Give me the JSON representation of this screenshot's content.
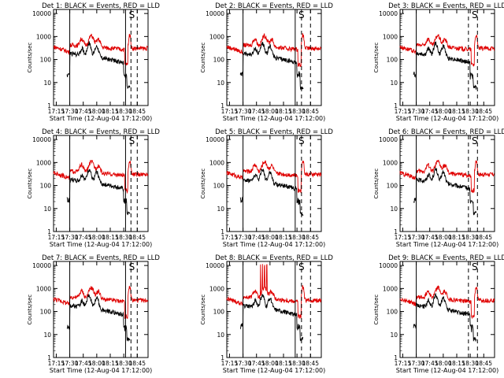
{
  "colors": {
    "events": "#000000",
    "lld": "#e00000",
    "axes": "#000000",
    "background": "#ffffff"
  },
  "chart_data": [
    {
      "type": "line",
      "title": "Det 1: BLACK = Events, RED = LLD",
      "xlabel": "Start Time (12-Aug-04 17:12:00)",
      "ylabel": "Counts/sec",
      "x_ticks": [
        "17:15",
        "17:30",
        "17:45",
        "18:00",
        "18:15",
        "18:30",
        "18:45"
      ],
      "y_ticks": [
        "1",
        "10",
        "100",
        "1000",
        "10000"
      ],
      "xlim_minutes": [
        17.2,
        18.95
      ],
      "ylim": [
        1,
        15000
      ],
      "y_scale": "log",
      "annotation": "S",
      "vertical_lines": {
        "solid": [
          "17:30",
          "18:32"
        ],
        "dashed": [
          "18:38",
          "18:45"
        ]
      },
      "series": [
        {
          "color": "red",
          "values": "~150-400 counts/sec baseline with peaks near 17:42, 17:52, 18:05; spike ~1200 at 18:36"
        },
        {
          "color": "black",
          "values": "~20 at 17:27, ~60-500 counts/sec with peaks near 17:53, 18:05; drop at 18:30"
        }
      ]
    },
    {
      "type": "line",
      "title": "Det 2: BLACK = Events, RED = LLD",
      "xlabel": "Start Time (12-Aug-04 17:12:00)",
      "ylabel": "Counts/sec",
      "x_ticks": [
        "17:15",
        "17:30",
        "17:45",
        "18:00",
        "18:15",
        "18:30",
        "18:45"
      ],
      "y_ticks": [
        "1",
        "10",
        "100",
        "1000",
        "10000"
      ],
      "xlim_minutes": [
        17.2,
        18.95
      ],
      "ylim": [
        1,
        15000
      ],
      "y_scale": "log",
      "annotation": "S",
      "vertical_lines": {
        "solid": [
          "17:30",
          "18:28"
        ],
        "dashed": [
          "18:35",
          "18:45"
        ]
      },
      "series": [
        {
          "color": "red",
          "values": "~300-900 counts/sec"
        },
        {
          "color": "black",
          "values": "~100-500 counts/sec"
        }
      ]
    },
    {
      "type": "line",
      "title": "Det 3: BLACK = Events, RED = LLD",
      "xlabel": "Start Time (12-Aug-04 17:12:00)",
      "ylabel": "Counts/sec",
      "x_ticks": [
        "17:15",
        "17:30",
        "17:45",
        "18:00",
        "18:15",
        "18:30",
        "18:45"
      ],
      "y_ticks": [
        "1",
        "10",
        "100",
        "1000",
        "10000"
      ],
      "xlim_minutes": [
        17.2,
        18.95
      ],
      "ylim": [
        1,
        15000
      ],
      "y_scale": "log",
      "annotation": "S",
      "vertical_lines": {
        "solid": [
          "17:30"
        ],
        "dashed": [
          "18:28",
          "18:38"
        ]
      },
      "series": [
        {
          "color": "red",
          "values": "~300-1200 counts/sec"
        },
        {
          "color": "black",
          "values": "~15-500 counts/sec"
        }
      ]
    },
    {
      "type": "line",
      "title": "Det 4: BLACK = Events, RED = LLD",
      "xlabel": "Start Time (12-Aug-04 17:12:00)",
      "ylabel": "Counts/sec",
      "x_ticks": [
        "17:15",
        "17:30",
        "17:45",
        "18:00",
        "18:15",
        "18:30",
        "18:45"
      ],
      "y_ticks": [
        "1",
        "10",
        "100",
        "1000",
        "10000"
      ],
      "xlim_minutes": [
        17.2,
        18.95
      ],
      "ylim": [
        1,
        15000
      ],
      "y_scale": "log",
      "annotation": "S",
      "vertical_lines": {
        "solid": [
          "17:30",
          "18:32"
        ],
        "dashed": [
          "18:38",
          "18:45"
        ]
      },
      "series": [
        {
          "color": "red",
          "values": "~300-2000 counts/sec"
        },
        {
          "color": "black",
          "values": "~20-700 counts/sec"
        }
      ]
    },
    {
      "type": "line",
      "title": "Det 5: BLACK = Events, RED = LLD",
      "xlabel": "Start Time (12-Aug-04 17:12:00)",
      "ylabel": "Counts/sec",
      "x_ticks": [
        "17:15",
        "17:30",
        "17:45",
        "18:00",
        "18:15",
        "18:30",
        "18:45"
      ],
      "y_ticks": [
        "1",
        "10",
        "100",
        "1000",
        "10000"
      ],
      "xlim_minutes": [
        17.2,
        18.95
      ],
      "ylim": [
        1,
        15000
      ],
      "y_scale": "log",
      "annotation": "S",
      "vertical_lines": {
        "solid": [
          "17:30",
          "18:28"
        ],
        "dashed": [
          "18:35",
          "18:45"
        ]
      },
      "series": [
        {
          "color": "red",
          "values": "~400-1500 counts/sec"
        },
        {
          "color": "black",
          "values": "~20-500 counts/sec"
        }
      ]
    },
    {
      "type": "line",
      "title": "Det 6: BLACK = Events, RED = LLD",
      "xlabel": "Start Time (12-Aug-04 17:12:00)",
      "ylabel": "Counts/sec",
      "x_ticks": [
        "17:15",
        "17:30",
        "17:45",
        "18:00",
        "18:15",
        "18:30",
        "18:45"
      ],
      "y_ticks": [
        "1",
        "10",
        "100",
        "1000",
        "10000"
      ],
      "xlim_minutes": [
        17.2,
        18.95
      ],
      "ylim": [
        1,
        15000
      ],
      "y_scale": "log",
      "annotation": "S",
      "vertical_lines": {
        "solid": [
          "17:30"
        ],
        "dashed": [
          "18:28",
          "18:38"
        ]
      },
      "series": [
        {
          "color": "red",
          "values": "~300-1500 counts/sec"
        },
        {
          "color": "black",
          "values": "~15-500 counts/sec"
        }
      ]
    },
    {
      "type": "line",
      "title": "Det 7: BLACK = Events, RED = LLD",
      "xlabel": "Start Time (12-Aug-04 17:12:00)",
      "ylabel": "Counts/sec",
      "x_ticks": [
        "17:15",
        "17:30",
        "17:45",
        "18:00",
        "18:15",
        "18:30",
        "18:45"
      ],
      "y_ticks": [
        "1",
        "10",
        "100",
        "1000",
        "10000"
      ],
      "xlim_minutes": [
        17.2,
        18.95
      ],
      "ylim": [
        1,
        15000
      ],
      "y_scale": "log",
      "annotation": "S",
      "vertical_lines": {
        "solid": [
          "17:30",
          "18:32"
        ],
        "dashed": [
          "18:38",
          "18:45"
        ]
      },
      "series": [
        {
          "color": "red",
          "values": "~250-1000 counts/sec"
        },
        {
          "color": "black",
          "values": "~20-400 counts/sec"
        }
      ]
    },
    {
      "type": "line",
      "title": "Det 8: BLACK = Events, RED = LLD",
      "xlabel": "Start Time (12-Aug-04 17:12:00)",
      "ylabel": "Counts/sec",
      "x_ticks": [
        "17:15",
        "17:30",
        "17:45",
        "18:00",
        "18:15",
        "18:30",
        "18:45"
      ],
      "y_ticks": [
        "1",
        "10",
        "100",
        "1000",
        "10000"
      ],
      "xlim_minutes": [
        17.2,
        18.95
      ],
      "ylim": [
        1,
        15000
      ],
      "y_scale": "log",
      "annotation": "S",
      "vertical_lines": {
        "solid": [
          "17:30",
          "18:28"
        ],
        "dashed": [
          "18:35",
          "18:45"
        ]
      },
      "series": [
        {
          "color": "red",
          "values": "~500-1500 counts/sec, spikes to ~10000 near 17:50-18:00"
        },
        {
          "color": "black",
          "values": "~30-700 counts/sec"
        }
      ]
    },
    {
      "type": "line",
      "title": "Det 9: BLACK = Events, RED = LLD",
      "xlabel": "Start Time (12-Aug-04 17:12:00)",
      "ylabel": "Counts/sec",
      "x_ticks": [
        "17:15",
        "17:30",
        "17:45",
        "18:00",
        "18:15",
        "18:30",
        "18:45"
      ],
      "y_ticks": [
        "1",
        "10",
        "100",
        "1000",
        "10000"
      ],
      "xlim_minutes": [
        17.2,
        18.95
      ],
      "ylim": [
        1,
        15000
      ],
      "y_scale": "log",
      "annotation": "S",
      "vertical_lines": {
        "solid": [
          "17:30"
        ],
        "dashed": [
          "18:28",
          "18:38"
        ]
      },
      "series": [
        {
          "color": "red",
          "values": "~300-1500 counts/sec"
        },
        {
          "color": "black",
          "values": "~15-600 counts/sec"
        }
      ]
    }
  ]
}
